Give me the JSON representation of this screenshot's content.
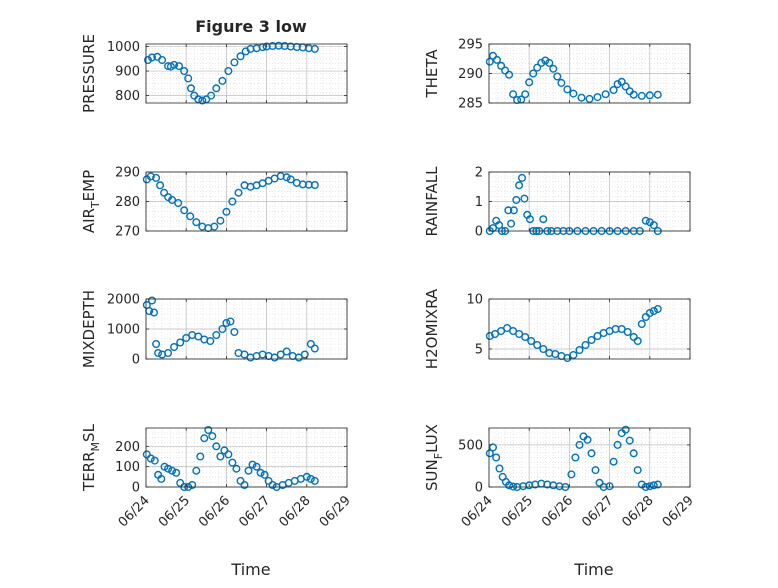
{
  "figure": {
    "title": "Figure 3 low",
    "x_ticks": [
      "06/24",
      "06/25",
      "06/26",
      "06/27",
      "06/28",
      "06/29"
    ],
    "xlabel": "Time",
    "marker_color": "#0072BD"
  },
  "chart_data": [
    {
      "type": "scatter",
      "ylabel": "PRESSURE",
      "ylim": [
        770,
        1010
      ],
      "yticks": [
        800,
        900,
        1000
      ],
      "x": [
        0.0,
        1.0,
        2.0,
        3.0,
        4.0,
        5.0
      ],
      "series": [
        {
          "x": [
            0.05,
            0.15,
            0.28,
            0.4,
            0.55,
            0.62,
            0.7,
            0.82,
            0.95,
            1.05,
            1.12,
            1.2,
            1.3,
            1.4,
            1.5,
            1.62,
            1.75,
            1.9,
            2.05,
            2.2,
            2.35,
            2.48,
            2.6,
            2.75,
            2.9,
            3.0,
            3.15,
            3.3,
            3.45,
            3.6,
            3.75,
            3.9,
            4.05,
            4.2
          ],
          "y": [
            945,
            955,
            958,
            945,
            920,
            918,
            925,
            920,
            900,
            870,
            830,
            800,
            785,
            780,
            785,
            800,
            830,
            860,
            900,
            935,
            960,
            980,
            990,
            993,
            997,
            1000,
            1002,
            1003,
            1002,
            1000,
            998,
            996,
            993,
            990
          ]
        }
      ]
    },
    {
      "type": "scatter",
      "ylabel": "THETA",
      "ylim": [
        285,
        295
      ],
      "yticks": [
        285,
        290,
        295
      ],
      "x": [
        0.0,
        1.0,
        2.0,
        3.0,
        4.0,
        5.0
      ],
      "series": [
        {
          "x": [
            0.02,
            0.1,
            0.2,
            0.3,
            0.4,
            0.5,
            0.6,
            0.7,
            0.8,
            0.9,
            1.0,
            1.1,
            1.2,
            1.3,
            1.4,
            1.5,
            1.6,
            1.7,
            1.8,
            1.95,
            2.1,
            2.3,
            2.5,
            2.7,
            2.9,
            3.1,
            3.2,
            3.3,
            3.4,
            3.5,
            3.6,
            3.8,
            4.0,
            4.2
          ],
          "y": [
            292,
            293,
            292.3,
            291.3,
            290.5,
            289.8,
            286.5,
            285.5,
            285.6,
            286.5,
            288.5,
            290,
            291,
            291.8,
            292.2,
            291.8,
            290.8,
            289.5,
            288.4,
            287.3,
            286.6,
            285.9,
            285.7,
            286,
            286.5,
            287.2,
            288.2,
            288.6,
            287.8,
            287,
            286.4,
            286.2,
            286.3,
            286.4
          ]
        }
      ]
    },
    {
      "type": "scatter",
      "ylabel": "AIR_TEMP",
      "ylim": [
        270,
        290
      ],
      "yticks": [
        270,
        280,
        290
      ],
      "x": [
        0.0,
        1.0,
        2.0,
        3.0,
        4.0,
        5.0
      ],
      "series": [
        {
          "x": [
            0.02,
            0.12,
            0.25,
            0.35,
            0.45,
            0.55,
            0.65,
            0.8,
            0.95,
            1.1,
            1.25,
            1.4,
            1.55,
            1.7,
            1.85,
            2.0,
            2.15,
            2.3,
            2.45,
            2.6,
            2.75,
            2.9,
            3.05,
            3.2,
            3.35,
            3.5,
            3.6,
            3.75,
            3.9,
            4.05,
            4.2
          ],
          "y": [
            287.5,
            288.5,
            288,
            285.5,
            283,
            281.5,
            280.5,
            279.5,
            277,
            275,
            273,
            271.5,
            271,
            271.5,
            273.5,
            276.5,
            280,
            283,
            285.5,
            285,
            285.5,
            286.2,
            287,
            287.8,
            288.6,
            288.2,
            287.5,
            286.3,
            285.8,
            285.7,
            285.6
          ]
        }
      ]
    },
    {
      "type": "scatter",
      "ylabel": "RAINFALL",
      "ylim": [
        0,
        2
      ],
      "yticks": [
        0,
        1,
        2
      ],
      "x": [
        0.0,
        1.0,
        2.0,
        3.0,
        4.0,
        5.0
      ],
      "series": [
        {
          "x": [
            0.02,
            0.1,
            0.18,
            0.25,
            0.32,
            0.4,
            0.48,
            0.55,
            0.62,
            0.68,
            0.75,
            0.82,
            0.88,
            0.95,
            1.02,
            1.1,
            1.18,
            1.25,
            1.35,
            1.45,
            1.55,
            1.7,
            1.85,
            2.0,
            2.2,
            2.4,
            2.6,
            2.8,
            3.0,
            3.2,
            3.4,
            3.6,
            3.75,
            3.9,
            4.0,
            4.1,
            4.2
          ],
          "y": [
            0.0,
            0.1,
            0.35,
            0.2,
            0.0,
            0.0,
            0.7,
            0.25,
            0.7,
            1.05,
            1.55,
            1.8,
            1.1,
            0.55,
            0.4,
            0.0,
            0.0,
            0.0,
            0.4,
            0.0,
            0.0,
            0.0,
            0.0,
            0.0,
            0.0,
            0.0,
            0.0,
            0.0,
            0.0,
            0.0,
            0.0,
            0.0,
            0.0,
            0.35,
            0.3,
            0.2,
            0.0
          ]
        }
      ]
    },
    {
      "type": "scatter",
      "ylabel": "MIXDEPTH",
      "ylim": [
        0,
        2000
      ],
      "yticks": [
        0,
        1000,
        2000
      ],
      "x": [
        0.0,
        1.0,
        2.0,
        3.0,
        4.0,
        5.0
      ],
      "series": [
        {
          "x": [
            0.02,
            0.08,
            0.15,
            0.2,
            0.25,
            0.3,
            0.4,
            0.55,
            0.7,
            0.85,
            1.0,
            1.15,
            1.3,
            1.45,
            1.6,
            1.75,
            1.9,
            2.0,
            2.1,
            2.2,
            2.3,
            2.45,
            2.6,
            2.75,
            2.9,
            3.05,
            3.2,
            3.35,
            3.5,
            3.65,
            3.8,
            3.95,
            4.1,
            4.2
          ],
          "y": [
            1800,
            1600,
            1950,
            1550,
            500,
            200,
            150,
            200,
            400,
            550,
            700,
            800,
            750,
            650,
            600,
            800,
            1000,
            1200,
            1250,
            900,
            200,
            150,
            50,
            100,
            150,
            100,
            50,
            150,
            250,
            100,
            50,
            150,
            500,
            350
          ]
        }
      ]
    },
    {
      "type": "scatter",
      "ylabel": "H2OMIXRA",
      "ylim": [
        4,
        10
      ],
      "yticks": [
        5,
        10
      ],
      "x": [
        0.0,
        1.0,
        2.0,
        3.0,
        4.0,
        5.0
      ],
      "series": [
        {
          "x": [
            0.02,
            0.15,
            0.3,
            0.45,
            0.6,
            0.75,
            0.9,
            1.05,
            1.2,
            1.35,
            1.5,
            1.65,
            1.8,
            1.95,
            2.1,
            2.25,
            2.4,
            2.55,
            2.7,
            2.85,
            3.0,
            3.15,
            3.3,
            3.45,
            3.6,
            3.7,
            3.8,
            3.9,
            4.0,
            4.1,
            4.2
          ],
          "y": [
            6.3,
            6.5,
            6.8,
            7.1,
            6.8,
            6.5,
            6.2,
            5.8,
            5.4,
            5.0,
            4.6,
            4.5,
            4.3,
            4.1,
            4.4,
            4.9,
            5.4,
            5.9,
            6.3,
            6.6,
            6.8,
            7.0,
            7.0,
            6.7,
            6.2,
            5.8,
            7.5,
            8.2,
            8.6,
            8.8,
            9.0
          ]
        }
      ]
    },
    {
      "type": "scatter",
      "ylabel": "TERR_MSL",
      "ylim": [
        0,
        290
      ],
      "yticks": [
        0,
        100,
        200
      ],
      "x": [
        0.0,
        1.0,
        2.0,
        3.0,
        4.0,
        5.0
      ],
      "series": [
        {
          "x": [
            0.02,
            0.12,
            0.22,
            0.3,
            0.38,
            0.46,
            0.55,
            0.65,
            0.75,
            0.85,
            0.95,
            1.05,
            1.15,
            1.25,
            1.35,
            1.45,
            1.55,
            1.65,
            1.75,
            1.85,
            1.95,
            2.05,
            2.15,
            2.25,
            2.35,
            2.45,
            2.55,
            2.65,
            2.75,
            2.85,
            2.95,
            3.05,
            3.15,
            3.25,
            3.4,
            3.55,
            3.7,
            3.85,
            4.0,
            4.1,
            4.2
          ],
          "y": [
            160,
            140,
            130,
            60,
            40,
            100,
            90,
            80,
            70,
            20,
            0,
            0,
            10,
            80,
            150,
            240,
            280,
            250,
            200,
            150,
            180,
            160,
            120,
            90,
            30,
            10,
            80,
            110,
            100,
            70,
            60,
            30,
            10,
            0,
            10,
            20,
            30,
            40,
            50,
            40,
            30
          ]
        }
      ]
    },
    {
      "type": "scatter",
      "ylabel": "SUN_FLUX",
      "ylim": [
        0,
        700
      ],
      "yticks": [
        0,
        500
      ],
      "x": [
        0.0,
        1.0,
        2.0,
        3.0,
        4.0,
        5.0
      ],
      "series": [
        {
          "x": [
            0.02,
            0.1,
            0.18,
            0.26,
            0.34,
            0.42,
            0.5,
            0.6,
            0.7,
            0.85,
            1.0,
            1.15,
            1.3,
            1.45,
            1.6,
            1.75,
            1.9,
            2.05,
            2.15,
            2.25,
            2.35,
            2.45,
            2.55,
            2.65,
            2.75,
            2.85,
            3.0,
            3.1,
            3.2,
            3.3,
            3.4,
            3.5,
            3.6,
            3.7,
            3.8,
            3.9,
            4.0,
            4.1,
            4.2
          ],
          "y": [
            400,
            470,
            350,
            220,
            120,
            60,
            20,
            5,
            0,
            10,
            20,
            30,
            40,
            30,
            20,
            10,
            0,
            150,
            350,
            500,
            600,
            560,
            400,
            200,
            50,
            0,
            10,
            300,
            500,
            640,
            680,
            550,
            400,
            200,
            30,
            0,
            10,
            20,
            30
          ]
        }
      ]
    }
  ]
}
